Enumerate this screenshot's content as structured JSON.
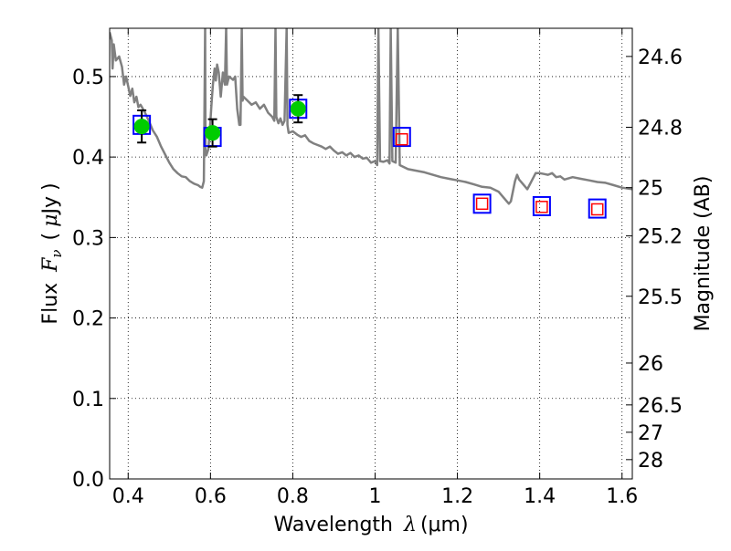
{
  "chart_data": {
    "type": "scatter",
    "title": "",
    "xlabel": "Wavelength",
    "xlabel_symbol": "λ",
    "xlabel_unit": "(μm)",
    "ylabel": "Flux",
    "ylabel_symbol": "F",
    "ylabel_subscript": "ν",
    "ylabel_unit_open": "(",
    "ylabel_unit_mu": "μ",
    "ylabel_unit": "Jy",
    "ylabel_unit_close": ")",
    "y2label": "Magnitude (AB)",
    "xlim": [
      0.355,
      1.625
    ],
    "ylim": [
      0.0,
      0.56
    ],
    "grid": true,
    "grid_style": "dotted",
    "x_ticks": [
      {
        "value": 0.4,
        "label": "0.4"
      },
      {
        "value": 0.6,
        "label": "0.6"
      },
      {
        "value": 0.8,
        "label": "0.8"
      },
      {
        "value": 1.0,
        "label": "1"
      },
      {
        "value": 1.2,
        "label": "1.2"
      },
      {
        "value": 1.4,
        "label": "1.4"
      },
      {
        "value": 1.6,
        "label": "1.6"
      }
    ],
    "y_ticks": [
      {
        "value": 0.0,
        "label": "0.0"
      },
      {
        "value": 0.1,
        "label": "0.1"
      },
      {
        "value": 0.2,
        "label": "0.2"
      },
      {
        "value": 0.3,
        "label": "0.3"
      },
      {
        "value": 0.4,
        "label": "0.4"
      },
      {
        "value": 0.5,
        "label": "0.5"
      }
    ],
    "y2_ticks": [
      {
        "flux": 0.525,
        "label": "24.6"
      },
      {
        "flux": 0.437,
        "label": "24.8"
      },
      {
        "flux": 0.362,
        "label": "25"
      },
      {
        "flux": 0.302,
        "label": "25.2"
      },
      {
        "flux": 0.227,
        "label": "25.5"
      },
      {
        "flux": 0.144,
        "label": "26"
      },
      {
        "flux": 0.092,
        "label": "26.5"
      },
      {
        "flux": 0.058,
        "label": "27"
      },
      {
        "flux": 0.024,
        "label": "28"
      }
    ],
    "series": [
      {
        "kind": "line",
        "color": "#808080",
        "points": [
          [
            0.355,
            0.555
          ],
          [
            0.36,
            0.545
          ],
          [
            0.362,
            0.51
          ],
          [
            0.365,
            0.54
          ],
          [
            0.37,
            0.52
          ],
          [
            0.378,
            0.525
          ],
          [
            0.385,
            0.512
          ],
          [
            0.39,
            0.49
          ],
          [
            0.395,
            0.5
          ],
          [
            0.4,
            0.488
          ],
          [
            0.405,
            0.476
          ],
          [
            0.41,
            0.485
          ],
          [
            0.415,
            0.468
          ],
          [
            0.42,
            0.475
          ],
          [
            0.425,
            0.462
          ],
          [
            0.43,
            0.465
          ],
          [
            0.44,
            0.456
          ],
          [
            0.45,
            0.445
          ],
          [
            0.46,
            0.433
          ],
          [
            0.47,
            0.425
          ],
          [
            0.48,
            0.413
          ],
          [
            0.49,
            0.403
          ],
          [
            0.5,
            0.393
          ],
          [
            0.51,
            0.385
          ],
          [
            0.52,
            0.38
          ],
          [
            0.53,
            0.376
          ],
          [
            0.54,
            0.375
          ],
          [
            0.55,
            0.37
          ],
          [
            0.56,
            0.367
          ],
          [
            0.57,
            0.365
          ],
          [
            0.575,
            0.363
          ],
          [
            0.58,
            0.362
          ],
          [
            0.584,
            0.37
          ],
          [
            0.587,
            0.56
          ],
          [
            0.588,
            0.41
          ],
          [
            0.59,
            0.402
          ],
          [
            0.595,
            0.41
          ],
          [
            0.6,
            0.445
          ],
          [
            0.603,
            0.47
          ],
          [
            0.606,
            0.49
          ],
          [
            0.61,
            0.51
          ],
          [
            0.613,
            0.495
          ],
          [
            0.616,
            0.515
          ],
          [
            0.62,
            0.505
          ],
          [
            0.625,
            0.475
          ],
          [
            0.63,
            0.505
          ],
          [
            0.635,
            0.49
          ],
          [
            0.638,
            0.56
          ],
          [
            0.64,
            0.49
          ],
          [
            0.645,
            0.5
          ],
          [
            0.65,
            0.498
          ],
          [
            0.655,
            0.496
          ],
          [
            0.66,
            0.5
          ],
          [
            0.665,
            0.46
          ],
          [
            0.67,
            0.44
          ],
          [
            0.673,
            0.44
          ],
          [
            0.676,
            0.56
          ],
          [
            0.678,
            0.47
          ],
          [
            0.68,
            0.475
          ],
          [
            0.69,
            0.47
          ],
          [
            0.7,
            0.465
          ],
          [
            0.71,
            0.468
          ],
          [
            0.72,
            0.46
          ],
          [
            0.73,
            0.465
          ],
          [
            0.74,
            0.455
          ],
          [
            0.75,
            0.45
          ],
          [
            0.755,
            0.445
          ],
          [
            0.758,
            0.56
          ],
          [
            0.76,
            0.45
          ],
          [
            0.765,
            0.442
          ],
          [
            0.77,
            0.448
          ],
          [
            0.775,
            0.44
          ],
          [
            0.78,
            0.445
          ],
          [
            0.785,
            0.56
          ],
          [
            0.787,
            0.44
          ],
          [
            0.79,
            0.43
          ],
          [
            0.8,
            0.432
          ],
          [
            0.81,
            0.428
          ],
          [
            0.82,
            0.425
          ],
          [
            0.83,
            0.427
          ],
          [
            0.84,
            0.42
          ],
          [
            0.85,
            0.417
          ],
          [
            0.86,
            0.415
          ],
          [
            0.87,
            0.413
          ],
          [
            0.88,
            0.41
          ],
          [
            0.89,
            0.413
          ],
          [
            0.9,
            0.408
          ],
          [
            0.91,
            0.404
          ],
          [
            0.92,
            0.406
          ],
          [
            0.93,
            0.402
          ],
          [
            0.94,
            0.405
          ],
          [
            0.95,
            0.4
          ],
          [
            0.96,
            0.402
          ],
          [
            0.97,
            0.398
          ],
          [
            0.98,
            0.399
          ],
          [
            0.99,
            0.393
          ],
          [
            1.0,
            0.395
          ],
          [
            1.005,
            0.39
          ],
          [
            1.008,
            0.56
          ],
          [
            1.012,
            0.395
          ],
          [
            1.02,
            0.394
          ],
          [
            1.03,
            0.396
          ],
          [
            1.035,
            0.392
          ],
          [
            1.038,
            0.56
          ],
          [
            1.042,
            0.395
          ],
          [
            1.05,
            0.393
          ],
          [
            1.055,
            0.56
          ],
          [
            1.06,
            0.39
          ],
          [
            1.08,
            0.385
          ],
          [
            1.1,
            0.383
          ],
          [
            1.12,
            0.381
          ],
          [
            1.14,
            0.378
          ],
          [
            1.16,
            0.375
          ],
          [
            1.18,
            0.373
          ],
          [
            1.2,
            0.371
          ],
          [
            1.22,
            0.369
          ],
          [
            1.24,
            0.366
          ],
          [
            1.26,
            0.363
          ],
          [
            1.28,
            0.362
          ],
          [
            1.3,
            0.357
          ],
          [
            1.32,
            0.345
          ],
          [
            1.325,
            0.342
          ],
          [
            1.33,
            0.345
          ],
          [
            1.34,
            0.37
          ],
          [
            1.345,
            0.378
          ],
          [
            1.35,
            0.372
          ],
          [
            1.36,
            0.366
          ],
          [
            1.37,
            0.36
          ],
          [
            1.375,
            0.365
          ],
          [
            1.38,
            0.37
          ],
          [
            1.39,
            0.38
          ],
          [
            1.4,
            0.38
          ],
          [
            1.41,
            0.379
          ],
          [
            1.42,
            0.378
          ],
          [
            1.43,
            0.38
          ],
          [
            1.44,
            0.375
          ],
          [
            1.45,
            0.376
          ],
          [
            1.46,
            0.372
          ],
          [
            1.48,
            0.375
          ],
          [
            1.5,
            0.373
          ],
          [
            1.52,
            0.371
          ],
          [
            1.54,
            0.369
          ],
          [
            1.56,
            0.368
          ],
          [
            1.58,
            0.365
          ],
          [
            1.6,
            0.362
          ],
          [
            1.625,
            0.36
          ]
        ]
      },
      {
        "kind": "model-photometry",
        "marker": "open-square",
        "color": "#0000ff",
        "points": [
          [
            0.433,
            0.44
          ],
          [
            0.605,
            0.425
          ],
          [
            0.813,
            0.46
          ],
          [
            1.065,
            0.425
          ],
          [
            1.26,
            0.342
          ],
          [
            1.405,
            0.339
          ],
          [
            1.54,
            0.336
          ]
        ]
      },
      {
        "kind": "observed",
        "marker": "filled-circle",
        "color": "#00cc00",
        "error_color": "#000000",
        "points": [
          {
            "x": 0.433,
            "y": 0.438,
            "yerr": 0.02
          },
          {
            "x": 0.605,
            "y": 0.43,
            "yerr": 0.017
          },
          {
            "x": 0.813,
            "y": 0.46,
            "yerr": 0.017
          }
        ]
      },
      {
        "kind": "upper-limit",
        "marker": "open-square",
        "color": "#ff0000",
        "points": [
          [
            1.065,
            0.422
          ],
          [
            1.26,
            0.342
          ],
          [
            1.405,
            0.338
          ],
          [
            1.54,
            0.335
          ]
        ]
      }
    ]
  }
}
